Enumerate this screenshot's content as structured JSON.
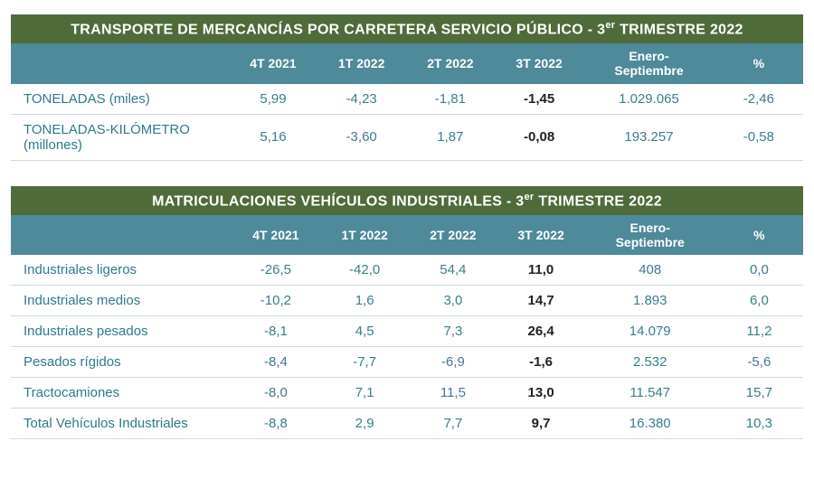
{
  "tables": [
    {
      "title_html": "TRANSPORTE DE MERCANCÍAS POR CARRETERA SERVICIO PÚBLICO - 3<sup>er</sup> TRIMESTRE 2022",
      "columns": [
        "",
        "4T 2021",
        "1T 2022",
        "2T 2022",
        "3T 2022",
        "Enero-\nSeptiembre",
        "%"
      ],
      "rows": [
        {
          "label": "TONELADAS (miles)",
          "cells": [
            "5,99",
            "-4,23",
            "-1,81",
            "-1,45",
            "1.029.065",
            "-2,46"
          ]
        },
        {
          "label": "TONELADAS-KILÓMETRO (millones)",
          "cells": [
            "5,16",
            "-3,60",
            "1,87",
            "-0,08",
            "193.257",
            "-0,58"
          ]
        }
      ]
    },
    {
      "title_html": "MATRICULACIONES VEHÍCULOS INDUSTRIALES - 3<sup>er</sup> TRIMESTRE 2022",
      "columns": [
        "",
        "4T 2021",
        "1T 2022",
        "2T 2022",
        "3T 2022",
        "Enero-\nSeptiembre",
        "%"
      ],
      "rows": [
        {
          "label": "Industriales ligeros",
          "cells": [
            "-26,5",
            "-42,0",
            "54,4",
            "11,0",
            "408",
            "0,0"
          ]
        },
        {
          "label": "Industriales medios",
          "cells": [
            "-10,2",
            "1,6",
            "3,0",
            "14,7",
            "1.893",
            "6,0"
          ]
        },
        {
          "label": "Industriales pesados",
          "cells": [
            "-8,1",
            "4,5",
            "7,3",
            "26,4",
            "14.079",
            "11,2"
          ]
        },
        {
          "label": "Pesados rígidos",
          "cells": [
            "-8,4",
            "-7,7",
            "-6,9",
            "-1,6",
            "2.532",
            "-5,6"
          ]
        },
        {
          "label": "Tractocamiones",
          "cells": [
            "-8,0",
            "7,1",
            "11,5",
            "13,0",
            "11.547",
            "15,7"
          ]
        },
        {
          "label": "Total Vehículos Industriales",
          "cells": [
            "-8,8",
            "2,9",
            "7,7",
            "9,7",
            "16.380",
            "10,3"
          ]
        }
      ]
    }
  ],
  "style": {
    "title_bg": "#4f6b3a",
    "header_bg": "#4e8a99",
    "text_teal": "#3a7d8c",
    "row_border": "#cfd8dc",
    "bold_col_index": 3,
    "font_family": "Arial, Helvetica, sans-serif"
  }
}
